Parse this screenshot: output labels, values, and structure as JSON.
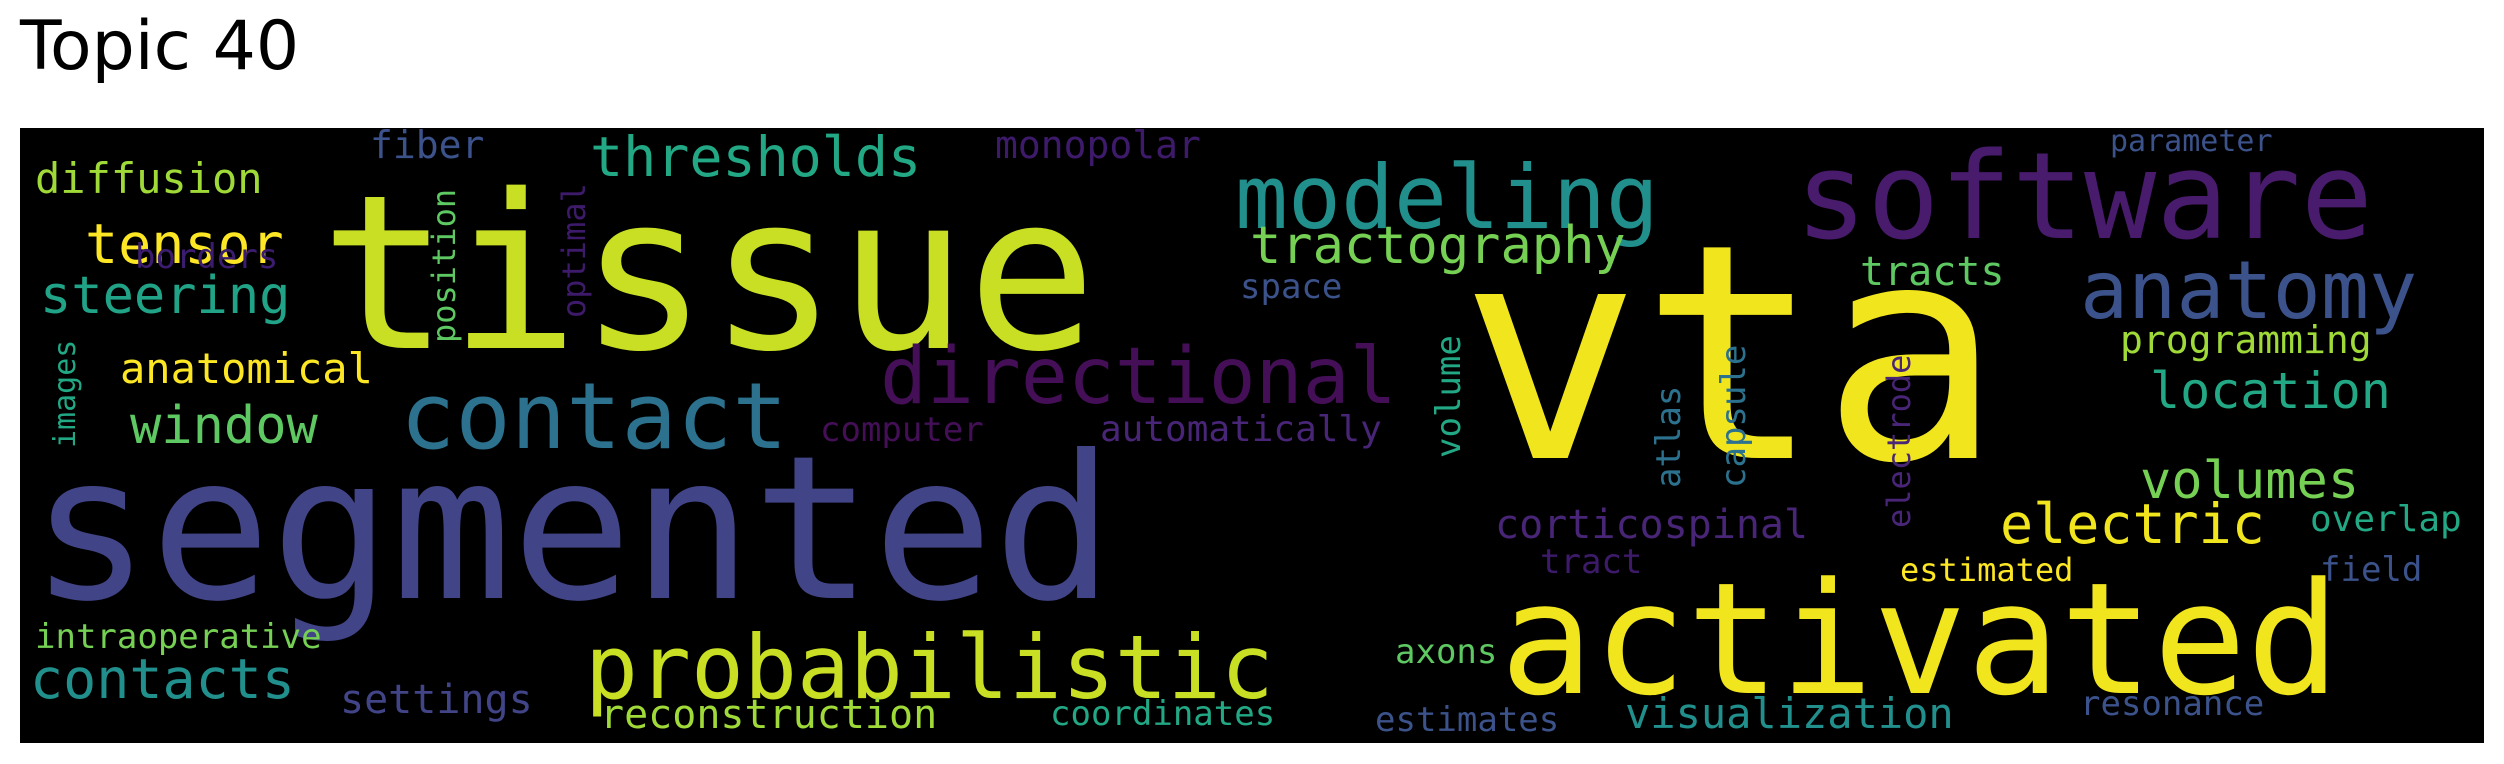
{
  "title": "Topic 40",
  "words": [
    {
      "text": "tissue",
      "color": "#c8df23"
    },
    {
      "text": "vta",
      "color": "#f1e51d"
    },
    {
      "text": "segmented",
      "color": "#414487"
    },
    {
      "text": "software",
      "color": "#481b6d"
    },
    {
      "text": "activated",
      "color": "#f1e51d"
    },
    {
      "text": "modeling",
      "color": "#21908d"
    },
    {
      "text": "contact",
      "color": "#2c728e"
    },
    {
      "text": "probabilistic",
      "color": "#c8df23"
    },
    {
      "text": "directional",
      "color": "#440f57"
    },
    {
      "text": "anatomy",
      "color": "#3b528b"
    },
    {
      "text": "tractography",
      "color": "#75d054"
    },
    {
      "text": "thresholds",
      "color": "#22a884"
    },
    {
      "text": "steering",
      "color": "#20a386"
    },
    {
      "text": "tensor",
      "color": "#fde725"
    },
    {
      "text": "window",
      "color": "#5ec962"
    },
    {
      "text": "diffusion",
      "color": "#a0da39"
    },
    {
      "text": "contacts",
      "color": "#21908d"
    },
    {
      "text": "location",
      "color": "#22a884"
    },
    {
      "text": "volumes",
      "color": "#75d054"
    },
    {
      "text": "electric",
      "color": "#f1e51d"
    },
    {
      "text": "anatomical",
      "color": "#fde725"
    },
    {
      "text": "fiber",
      "color": "#3b528b"
    },
    {
      "text": "monopolar",
      "color": "#3e1a6b"
    },
    {
      "text": "borders",
      "color": "#3b1c6e"
    },
    {
      "text": "position",
      "color": "#5ec962"
    },
    {
      "text": "optimal",
      "color": "#3e1a6b"
    },
    {
      "text": "images",
      "color": "#22a884"
    },
    {
      "text": "computer",
      "color": "#440f57"
    },
    {
      "text": "automatically",
      "color": "#482576"
    },
    {
      "text": "space",
      "color": "#3b528b"
    },
    {
      "text": "volume",
      "color": "#22a884"
    },
    {
      "text": "corticospinal",
      "color": "#482576"
    },
    {
      "text": "tract",
      "color": "#3e1a6b"
    },
    {
      "text": "atlas",
      "color": "#2c728e"
    },
    {
      "text": "capsule",
      "color": "#2c728e"
    },
    {
      "text": "electrode",
      "color": "#482576"
    },
    {
      "text": "tracts",
      "color": "#5ec962"
    },
    {
      "text": "programming",
      "color": "#a0da39"
    },
    {
      "text": "overlap",
      "color": "#22a884"
    },
    {
      "text": "estimated",
      "color": "#fde725"
    },
    {
      "text": "field",
      "color": "#3b528b"
    },
    {
      "text": "parameter",
      "color": "#3b528b"
    },
    {
      "text": "resonance",
      "color": "#3b528b"
    },
    {
      "text": "intraoperative",
      "color": "#75d054"
    },
    {
      "text": "settings",
      "color": "#414487"
    },
    {
      "text": "reconstruction",
      "color": "#a0da39"
    },
    {
      "text": "coordinates",
      "color": "#22a884"
    },
    {
      "text": "axons",
      "color": "#5ec962"
    },
    {
      "text": "estimates",
      "color": "#3b528b"
    },
    {
      "text": "visualization",
      "color": "#21908d"
    }
  ]
}
